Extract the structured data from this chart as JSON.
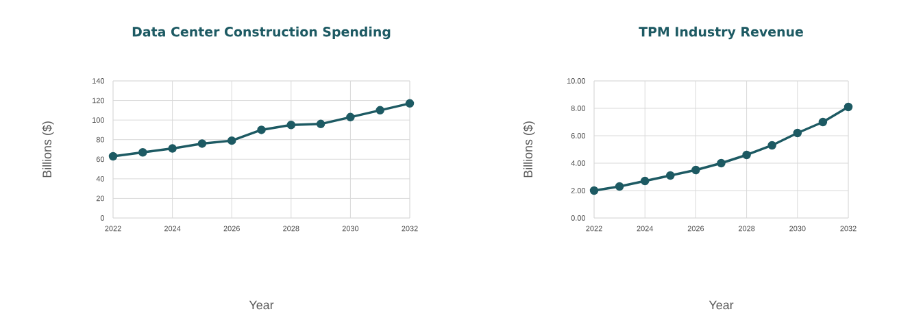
{
  "chart_data": [
    {
      "type": "line",
      "title": "Data Center Construction Spending",
      "xlabel": "Year",
      "ylabel": "Billions ($)",
      "x": [
        2022,
        2023,
        2024,
        2025,
        2026,
        2027,
        2028,
        2029,
        2030,
        2031,
        2032
      ],
      "series": [
        {
          "color": "#1d5a63",
          "values": [
            63,
            67,
            71,
            76,
            79,
            90,
            95,
            96,
            103,
            110,
            117
          ]
        }
      ],
      "xlim": [
        2022,
        2032
      ],
      "ylim": [
        0,
        140
      ],
      "xticks": [
        2022,
        2024,
        2026,
        2028,
        2030,
        2032
      ],
      "yticks": [
        0,
        20,
        40,
        60,
        80,
        100,
        120,
        140
      ],
      "grid": true,
      "marker": "circle",
      "line_style": "solid"
    },
    {
      "type": "line",
      "title": "TPM Industry Revenue",
      "xlabel": "Year",
      "ylabel": "Billions ($)",
      "x": [
        2022,
        2023,
        2024,
        2025,
        2026,
        2027,
        2028,
        2029,
        2030,
        2031,
        2032
      ],
      "series": [
        {
          "color": "#1d5a63",
          "values": [
            2.0,
            2.3,
            2.7,
            3.1,
            3.5,
            4.0,
            4.6,
            5.3,
            6.2,
            7.0,
            8.1
          ]
        }
      ],
      "xlim": [
        2022,
        2032
      ],
      "ylim": [
        0,
        10
      ],
      "xticks": [
        2022,
        2024,
        2026,
        2028,
        2030,
        2032
      ],
      "yticks": [
        {
          "value": 0,
          "label": "0.00"
        },
        {
          "value": 2,
          "label": "2.00"
        },
        {
          "value": 4,
          "label": "4.00"
        },
        {
          "value": 6,
          "label": "6.00"
        },
        {
          "value": 8,
          "label": "8.00"
        },
        {
          "value": 10,
          "label": "10.00"
        }
      ],
      "grid": true,
      "marker": "circle",
      "line_style": "solid"
    }
  ]
}
